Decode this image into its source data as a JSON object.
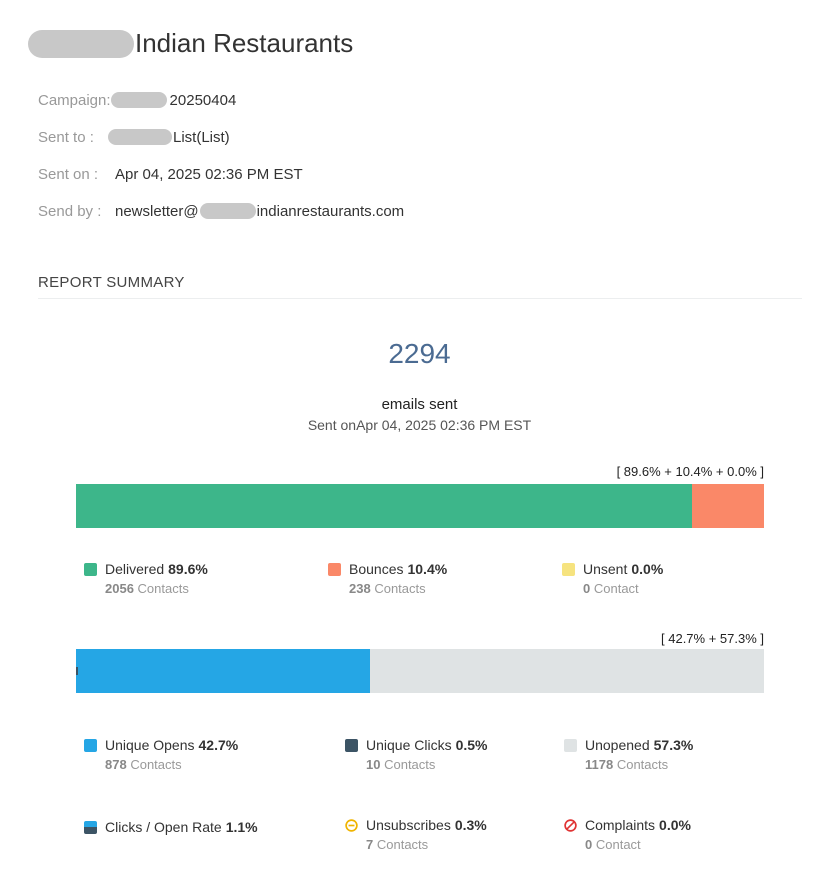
{
  "header": {
    "title": "Indian Restaurants"
  },
  "meta": {
    "campaign_label": "Campaign:",
    "campaign_value": "20250404",
    "sent_to_label": "Sent to :",
    "sent_to_value": "List(List)",
    "sent_on_label": "Sent on :",
    "sent_on_value": "Apr 04, 2025 02:36 PM EST",
    "send_by_label": "Send by :",
    "send_by_prefix": "newsletter@",
    "send_by_suffix": "indianrestaurants.com"
  },
  "summary": {
    "heading": "REPORT SUMMARY",
    "total": "2294",
    "total_label": "emails sent",
    "sent_on_line": "Sent onApr 04, 2025 02:36 PM EST"
  },
  "delivery_bar": {
    "label": "[ 89.6% + 10.4% + 0.0% ]",
    "segments": [
      {
        "name": "delivered",
        "percent": 89.6,
        "color": "#3db68a"
      },
      {
        "name": "bounces",
        "percent": 10.4,
        "color": "#fa8868"
      },
      {
        "name": "unsent",
        "percent": 0.0,
        "color": "#f6e37f"
      }
    ]
  },
  "delivery_legend": {
    "delivered": {
      "label": "Delivered",
      "pct": "89.6%",
      "count": "2056",
      "unit": "Contacts",
      "color": "#3db68a"
    },
    "bounces": {
      "label": "Bounces",
      "pct": "10.4%",
      "count": "238",
      "unit": "Contacts",
      "color": "#fa8868"
    },
    "unsent": {
      "label": "Unsent",
      "pct": "0.0%",
      "count": "0",
      "unit": "Contact",
      "color": "#f6e37f"
    }
  },
  "open_bar": {
    "label": "[ 42.7% + 57.3% ]",
    "segments": [
      {
        "name": "opens",
        "percent": 42.7,
        "color": "#25a6e5"
      },
      {
        "name": "unopened",
        "percent": 57.3,
        "color": "#dfe3e4"
      }
    ],
    "clicks_percent": 0.5,
    "clicks_color": "#3c5465"
  },
  "open_legend": {
    "opens": {
      "label": "Unique Opens",
      "pct": "42.7%",
      "count": "878",
      "unit": "Contacts",
      "color": "#25a6e5"
    },
    "clicks": {
      "label": "Unique Clicks",
      "pct": "0.5%",
      "count": "10",
      "unit": "Contacts",
      "color": "#3c5465"
    },
    "unopened": {
      "label": "Unopened",
      "pct": "57.3%",
      "count": "1178",
      "unit": "Contacts",
      "color": "#dfe3e4"
    }
  },
  "extra_legend": {
    "cor": {
      "label": "Clicks / Open Rate",
      "pct": "1.1%"
    },
    "unsubscribes": {
      "label": "Unsubscribes",
      "pct": "0.3%",
      "count": "7",
      "unit": "Contacts",
      "color": "#f0b400"
    },
    "complaints": {
      "label": "Complaints",
      "pct": "0.0%",
      "count": "0",
      "unit": "Contact",
      "color": "#e03434"
    }
  }
}
